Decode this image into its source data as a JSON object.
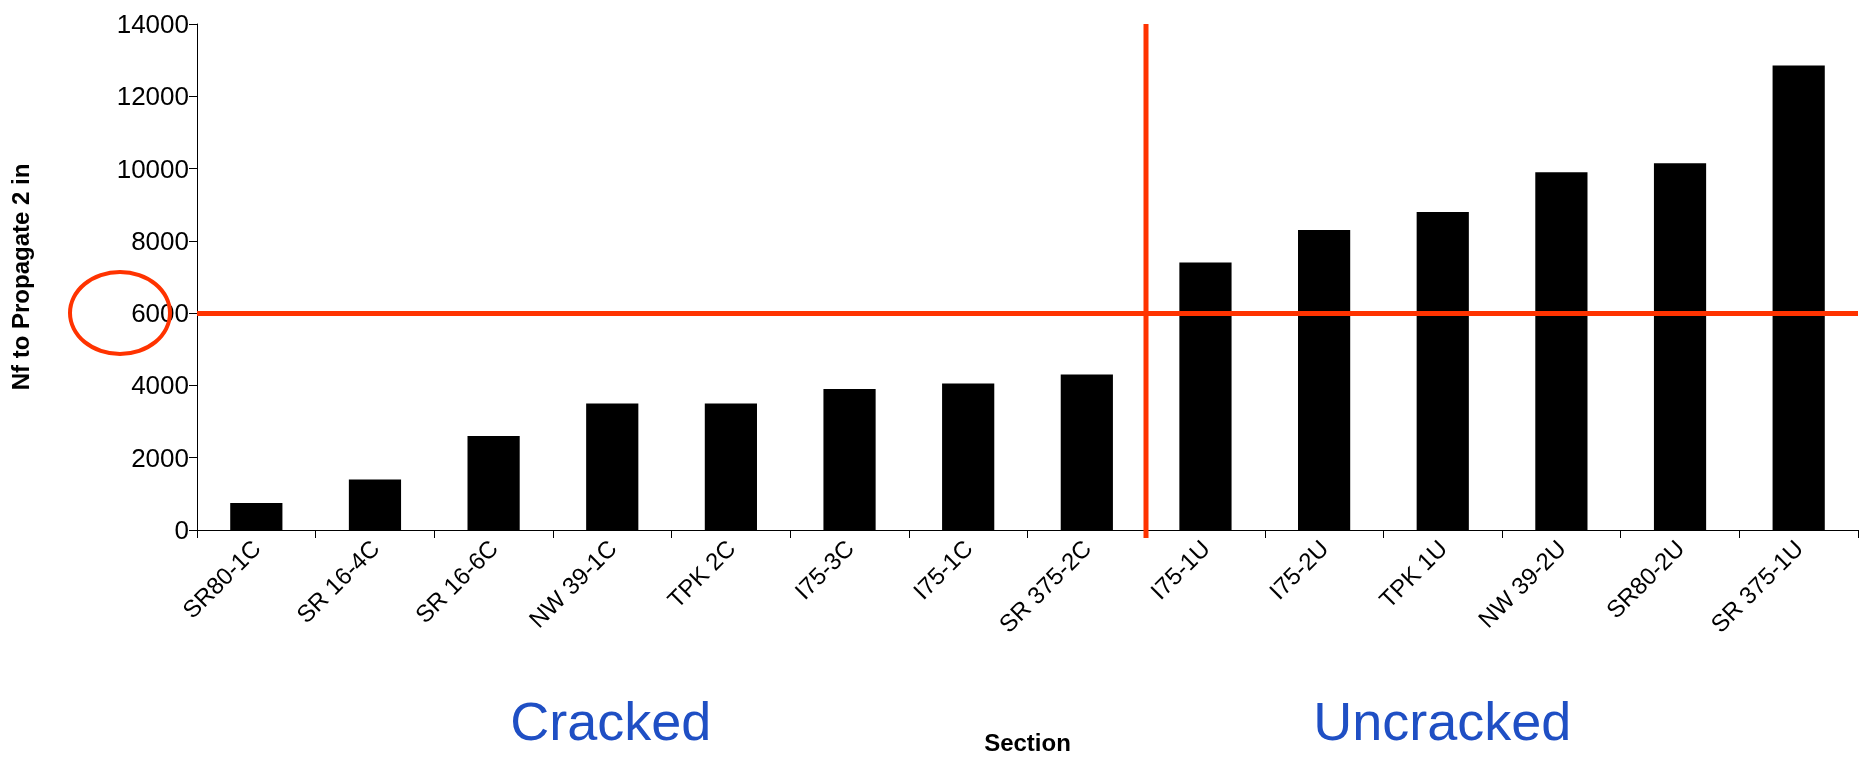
{
  "chart_data": {
    "type": "bar",
    "xlabel": "Section",
    "ylabel": "Nf to Propagate 2 in",
    "categories": [
      "SR80-1C",
      "SR 16-4C",
      "SR 16-6C",
      "NW 39-1C",
      "TPK 2C",
      "I75-3C",
      "I75-1C",
      "SR 375-2C",
      "I75-1U",
      "I75-2U",
      "TPK 1U",
      "NW 39-2U",
      "SR80-2U",
      "SR 375-1U"
    ],
    "values": [
      750,
      1400,
      2600,
      3500,
      3500,
      3900,
      4050,
      4300,
      7400,
      8300,
      8800,
      9900,
      10150,
      12850
    ],
    "color": "#000000",
    "ylim": [
      0,
      14000
    ],
    "yticks": [
      0,
      2000,
      4000,
      6000,
      8000,
      10000,
      12000,
      14000
    ],
    "grid": false,
    "ref_lines": [
      {
        "axis": "y",
        "value": 6000,
        "color": "#ff3300"
      }
    ],
    "annotations": [
      "Cracked",
      "Uncracked"
    ]
  }
}
